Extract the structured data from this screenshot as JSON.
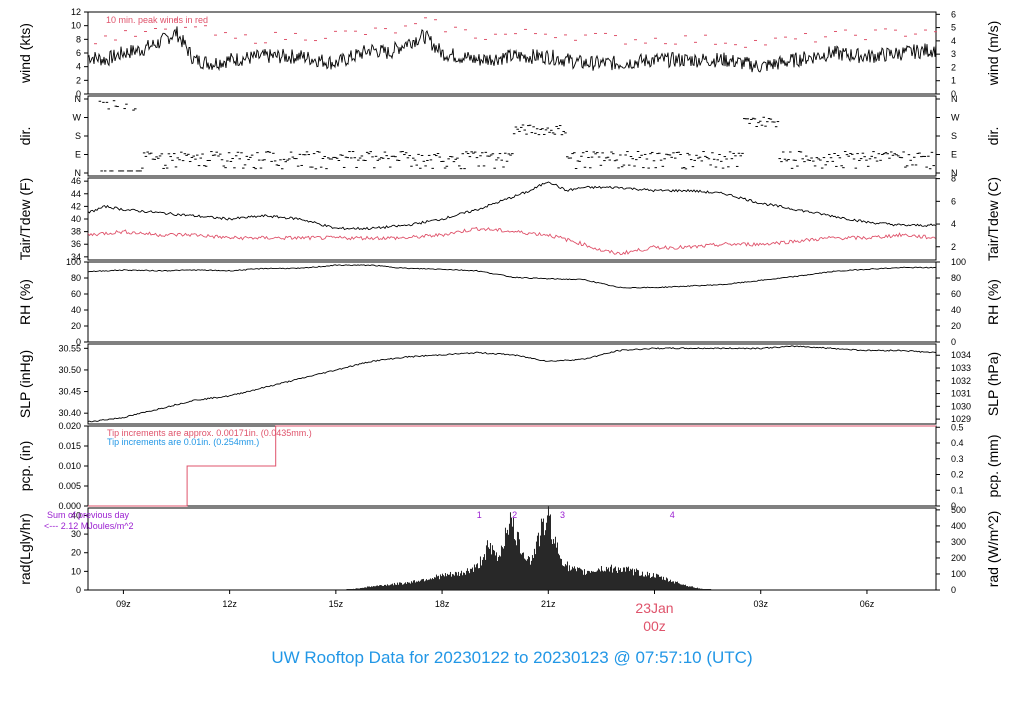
{
  "title": "UW Rooftop Data for 20230122  to  20230123 @ 07:57:10  (UTC)",
  "colors": {
    "peak": "#df536b",
    "text_blue": "#2297e6",
    "pcp_blue": "#2297e6",
    "pcp_red": "#df536b",
    "purple": "#9b1fd1",
    "date_label": "#df536b"
  },
  "x_axis": {
    "tick_labels": [
      "09z",
      "12z",
      "15z",
      "18z",
      "21z",
      "03z",
      "06z"
    ],
    "tick_hours": [
      9,
      12,
      15,
      18,
      21,
      27,
      30
    ],
    "date_label": "23Jan",
    "date_sub": "00z",
    "range_hours": [
      8.0,
      31.95
    ]
  },
  "panels": {
    "wind": {
      "left_label": "wind (kts)",
      "right_label": "wind (m/s)",
      "left_ticks": [
        "0",
        "2",
        "4",
        "6",
        "8",
        "10",
        "12"
      ],
      "right_ticks": [
        "0",
        "1",
        "2",
        "3",
        "4",
        "5",
        "6"
      ],
      "note": "10 min. peak winds in red"
    },
    "dir": {
      "left_label": "dir.",
      "right_label": "dir.",
      "left_ticks": [
        "N",
        "E",
        "S",
        "W",
        "N"
      ],
      "right_ticks": [
        "N",
        "E",
        "S",
        "W",
        "N"
      ]
    },
    "temp": {
      "left_label": "Tair/Tdew (F)",
      "right_label": "Tair/Tdew (C)",
      "left_ticks": [
        "34",
        "36",
        "38",
        "40",
        "42",
        "44",
        "46"
      ],
      "right_ticks": [
        "2",
        "4",
        "6",
        "8"
      ]
    },
    "rh": {
      "left_label": "RH (%)",
      "right_label": "RH (%)",
      "left_ticks": [
        "0",
        "20",
        "40",
        "60",
        "80",
        "100"
      ],
      "right_ticks": [
        "0",
        "20",
        "40",
        "60",
        "80",
        "100"
      ]
    },
    "slp": {
      "left_label": "SLP (inHg)",
      "right_label": "SLP (hPa)",
      "left_ticks": [
        "30.40",
        "30.45",
        "30.50",
        "30.55"
      ],
      "right_ticks": [
        "1029",
        "1030",
        "1031",
        "1032",
        "1033",
        "1034"
      ]
    },
    "pcp": {
      "left_label": "pcp. (in)",
      "right_label": "pcp. (mm)",
      "left_ticks": [
        "0.000",
        "0.005",
        "0.010",
        "0.015",
        "0.020"
      ],
      "right_ticks": [
        "0",
        "0.1",
        "0.2",
        "0.3",
        "0.4",
        "0.5"
      ],
      "note_red": "Tip increments are approx. 0.00171in. (0.0435mm.)",
      "note_blue": "Tip increments are 0.01in. (0.254mm.)"
    },
    "rad": {
      "left_label": "rad(Lgly/hr)",
      "right_label": "rad (W/m^2)",
      "left_ticks": [
        "0",
        "10",
        "20",
        "30",
        "40"
      ],
      "right_ticks": [
        "0",
        "100",
        "200",
        "300",
        "400",
        "500"
      ],
      "note_line1": "Sum of previous day",
      "note_line2": "<--- 2.12 MJoules/m^2",
      "markers": [
        "1",
        "2",
        "3",
        "4"
      ]
    }
  },
  "chart_data": [
    {
      "type": "line",
      "title": "",
      "ylabel": "wind (kts)",
      "ylim": [
        0,
        12
      ],
      "series": [
        {
          "values_note": "wind speed, kts",
          "x": [
            8.0,
            8.5,
            9.0,
            9.5,
            10.0,
            10.5,
            11.0,
            11.5,
            12.0,
            13.0,
            14.0,
            15.0,
            16.0,
            16.5,
            17.0,
            17.5,
            18.0,
            19.0,
            20.0,
            21.0,
            22.0,
            23.0,
            24.0,
            25.0,
            26.0,
            27.0,
            28.0,
            29.0,
            30.0,
            31.0,
            31.9
          ],
          "y": [
            5.5,
            5.0,
            6.0,
            6.5,
            7.5,
            9.0,
            5.0,
            4.5,
            5.0,
            5.5,
            5.5,
            4.5,
            6.5,
            6.0,
            7.5,
            8.5,
            6.0,
            5.0,
            5.5,
            5.5,
            4.5,
            4.5,
            5.0,
            5.0,
            5.0,
            4.0,
            5.0,
            6.0,
            5.5,
            6.0,
            6.5
          ]
        },
        {
          "values_note": "10 min peak winds",
          "x": [
            8.0,
            10.0,
            10.5,
            12.0,
            14.0,
            16.0,
            17.0,
            17.5,
            19.0,
            21.0,
            23.0,
            25.0,
            27.0,
            29.0,
            31.0,
            31.9
          ],
          "y": [
            8.0,
            9.0,
            10.5,
            8.0,
            8.5,
            9.0,
            9.5,
            10.5,
            8.5,
            9.0,
            8.0,
            8.0,
            7.5,
            8.5,
            9.0,
            9.5
          ]
        }
      ]
    },
    {
      "type": "scatter",
      "title": "",
      "ylabel": "dir.",
      "categories": [
        "N",
        "E",
        "S",
        "W",
        "N"
      ],
      "x_segments": [
        [
          8.3,
          9.5,
          "N/W"
        ],
        [
          9.5,
          11.0,
          "E"
        ],
        [
          11.0,
          12.0,
          "E"
        ],
        [
          12.0,
          14.0,
          "E"
        ],
        [
          14.0,
          16.0,
          "E"
        ],
        [
          16.0,
          18.0,
          "E"
        ],
        [
          18.0,
          19.5,
          "E"
        ],
        [
          19.5,
          20.0,
          "E"
        ],
        [
          20.0,
          21.5,
          "S/W"
        ],
        [
          21.5,
          23.0,
          "E"
        ],
        [
          23.0,
          25.0,
          "E"
        ],
        [
          25.0,
          26.5,
          "E"
        ],
        [
          26.5,
          27.5,
          "W"
        ],
        [
          27.5,
          31.9,
          "E"
        ]
      ]
    },
    {
      "type": "line",
      "title": "",
      "ylabel": "Tair/Tdew (F)",
      "ylim": [
        33.5,
        46.5
      ],
      "series": [
        {
          "values_note": "air temperature",
          "x": [
            8.0,
            8.5,
            9.0,
            10.0,
            11.0,
            12.0,
            13.0,
            14.0,
            15.0,
            16.0,
            17.0,
            18.0,
            19.0,
            20.0,
            20.5,
            21.0,
            21.5,
            22.0,
            23.0,
            24.0,
            25.0,
            26.0,
            27.0,
            28.0,
            29.0,
            30.0,
            31.0,
            31.9
          ],
          "y": [
            41.0,
            42.0,
            41.5,
            41.0,
            40.5,
            40.0,
            40.5,
            40.0,
            38.5,
            38.5,
            39.0,
            40.0,
            41.5,
            43.5,
            44.5,
            46.0,
            44.5,
            45.0,
            45.0,
            44.5,
            44.5,
            44.0,
            42.5,
            41.5,
            40.5,
            39.5,
            39.0,
            39.0
          ]
        },
        {
          "values_note": "dew point",
          "x": [
            8.0,
            9.0,
            10.0,
            11.0,
            12.0,
            13.0,
            14.0,
            15.0,
            16.0,
            17.0,
            18.0,
            19.0,
            20.0,
            21.0,
            22.0,
            22.5,
            23.0,
            24.0,
            25.0,
            26.0,
            27.0,
            28.0,
            29.0,
            30.0,
            31.0,
            31.9
          ],
          "y": [
            37.5,
            38.0,
            37.5,
            37.5,
            37.0,
            37.0,
            37.0,
            37.0,
            37.0,
            37.0,
            37.5,
            38.5,
            38.0,
            37.5,
            36.0,
            35.0,
            34.5,
            35.5,
            35.5,
            36.0,
            36.0,
            36.5,
            37.0,
            37.0,
            37.5,
            37.0
          ]
        }
      ]
    },
    {
      "type": "line",
      "title": "",
      "ylabel": "RH (%)",
      "ylim": [
        0,
        100
      ],
      "series": [
        {
          "values_note": "relative humidity",
          "x": [
            8.0,
            9.0,
            10.0,
            11.0,
            12.0,
            13.0,
            14.0,
            15.0,
            16.0,
            17.0,
            18.0,
            19.0,
            20.0,
            21.0,
            22.0,
            23.0,
            24.0,
            25.0,
            26.0,
            27.0,
            28.0,
            29.0,
            30.0,
            31.0,
            31.9
          ],
          "y": [
            88,
            90,
            89,
            90,
            89,
            92,
            92,
            96,
            96,
            92,
            91,
            89,
            81,
            79,
            78,
            68,
            68,
            70,
            72,
            77,
            82,
            88,
            91,
            93,
            93
          ]
        }
      ]
    },
    {
      "type": "line",
      "title": "",
      "ylabel": "SLP (inHg)",
      "ylim": [
        30.375,
        30.56
      ],
      "series": [
        {
          "values_note": "sea level pressure",
          "x": [
            8.0,
            9.0,
            10.0,
            11.0,
            12.0,
            13.0,
            14.0,
            15.0,
            16.0,
            17.0,
            18.0,
            19.0,
            20.0,
            21.0,
            22.0,
            23.0,
            24.0,
            25.0,
            26.0,
            27.0,
            28.0,
            29.0,
            30.0,
            31.0,
            31.9
          ],
          "y": [
            30.38,
            30.39,
            30.41,
            30.43,
            30.44,
            30.46,
            30.48,
            30.5,
            30.52,
            30.53,
            30.535,
            30.54,
            30.535,
            30.52,
            30.525,
            30.545,
            30.55,
            30.55,
            30.55,
            30.55,
            30.555,
            30.55,
            30.545,
            30.545,
            30.54
          ]
        }
      ]
    },
    {
      "type": "line",
      "title": "",
      "ylabel": "pcp. (in)",
      "ylim": [
        0,
        0.02
      ],
      "series": [
        {
          "values_note": "accumulated precipitation (step)",
          "x": [
            8.0,
            10.8,
            10.8,
            13.3,
            13.3,
            31.95
          ],
          "y": [
            0.0,
            0.0,
            0.01,
            0.01,
            0.02,
            0.02
          ]
        }
      ]
    },
    {
      "type": "area",
      "title": "",
      "ylabel": "rad(Lgly/hr)",
      "ylim": [
        0,
        44
      ],
      "series": [
        {
          "values_note": "solar radiation",
          "x": [
            15.3,
            16.0,
            17.0,
            17.5,
            18.0,
            18.5,
            19.0,
            19.3,
            19.6,
            19.9,
            20.2,
            20.5,
            20.8,
            21.0,
            21.3,
            21.6,
            22.0,
            22.5,
            23.0,
            23.5,
            24.0,
            24.5,
            25.0,
            25.5
          ],
          "y": [
            0,
            2,
            4,
            6,
            8,
            9,
            13,
            24,
            18,
            40,
            25,
            16,
            33,
            41,
            20,
            12,
            10,
            12,
            12,
            10,
            8,
            5,
            2,
            0
          ]
        }
      ]
    }
  ]
}
